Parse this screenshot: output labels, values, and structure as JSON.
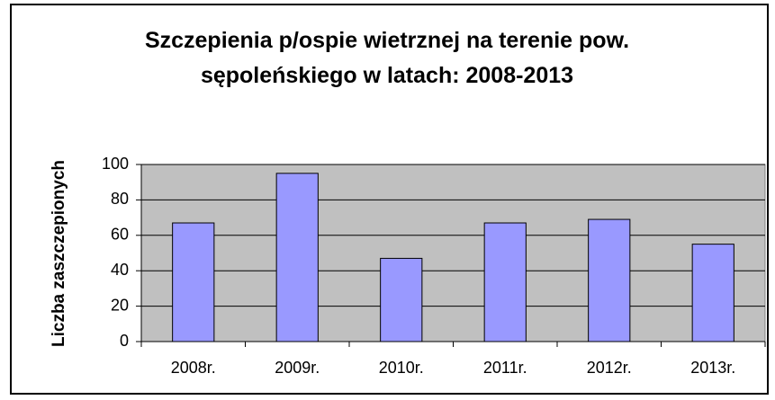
{
  "chart_data": {
    "type": "bar",
    "title": "Szczepienia p/ospie wietrznej na terenie pow. sępoleńskiego w latach: 2008-2013",
    "y_label": "Liczba zaszczepionych",
    "categories": [
      "2008r.",
      "2009r.",
      "2010r.",
      "2011r.",
      "2012r.",
      "2013r."
    ],
    "values": [
      67,
      95,
      47,
      67,
      69,
      55
    ],
    "color": "#9999ff",
    "ylim": [
      0,
      100
    ],
    "yticks": [
      0,
      20,
      40,
      60,
      80,
      100
    ],
    "grid": true
  }
}
